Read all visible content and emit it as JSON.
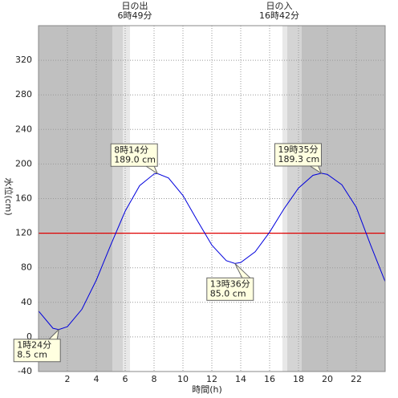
{
  "chart_data": {
    "type": "line",
    "sunrise_label": "日の出",
    "sunrise_time": "6時49分",
    "sunset_label": "日の入",
    "sunset_time": "16時42分",
    "xlabel": "時間(h)",
    "ylabel": "水位(cm)",
    "xlim": [
      0,
      24
    ],
    "xticks": [
      2,
      4,
      6,
      8,
      10,
      12,
      14,
      16,
      18,
      20,
      22
    ],
    "ylim": [
      -40,
      360
    ],
    "yticks": [
      -40,
      0,
      40,
      80,
      120,
      160,
      200,
      240,
      280,
      320
    ],
    "grid": true,
    "threshold": 120,
    "threshold_color": "#e00000",
    "series": [
      {
        "color": "#0000dd",
        "x": [
          0,
          1,
          1.4,
          2,
          3,
          4,
          5,
          6,
          7,
          8,
          8.233,
          9,
          10,
          11,
          12,
          13,
          13.6,
          14,
          15,
          16,
          17,
          18,
          19,
          19.583,
          20,
          21,
          22,
          23,
          24
        ],
        "values": [
          30,
          10,
          8.5,
          11.9,
          31.9,
          65.7,
          106.3,
          145.5,
          175,
          188.5,
          189.0,
          183.9,
          163.6,
          134.5,
          106.2,
          88.2,
          85.0,
          86.1,
          98.5,
          121.2,
          148.3,
          172.2,
          186.9,
          189.3,
          188,
          176,
          150,
          106,
          64
        ]
      }
    ],
    "annotations": [
      {
        "time": "1時24分",
        "level": "8.5 cm",
        "x": 1.4,
        "y": 8.5
      },
      {
        "time": "8時14分",
        "level": "189.0 cm",
        "x": 8.233,
        "y": 189.0
      },
      {
        "time": "13時36分",
        "level": "85.0 cm",
        "x": 13.6,
        "y": 85.0
      },
      {
        "time": "19時35分",
        "level": "189.3 cm",
        "x": 19.583,
        "y": 189.3
      }
    ]
  }
}
